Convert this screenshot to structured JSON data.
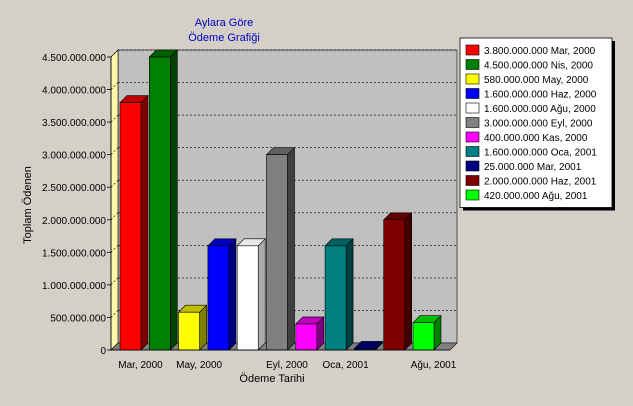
{
  "chart_data": {
    "type": "bar",
    "title": "Aylara Göre",
    "subtitle": "Ödeme Grafiği",
    "xlabel": "Ödeme Tarihi",
    "ylabel": "Toplam Ödenen",
    "ylim": [
      0,
      4500000000
    ],
    "yticks": [
      0,
      500000000,
      1000000000,
      1500000000,
      2000000000,
      2500000000,
      3000000000,
      3500000000,
      4000000000,
      4500000000
    ],
    "ytick_labels": [
      "0",
      "500.000.000",
      "1.000.000.000",
      "1.500.000.000",
      "2.000.000.000",
      "2.500.000.000",
      "3.000.000.000",
      "3.500.000.000",
      "4.000.000.000",
      "4.500.000.000"
    ],
    "xtick_labels": [
      "Mar, 2000",
      "May, 2000",
      "Eyl, 2000",
      "Oca, 2001",
      "Ağu, 2001"
    ],
    "grid": true,
    "legend_position": "right",
    "categories": [
      "Mar, 2000",
      "Nis, 2000",
      "May, 2000",
      "Haz, 2000",
      "Ağu, 2000",
      "Eyl, 2000",
      "Kas, 2000",
      "Oca, 2001",
      "Mar, 2001",
      "Haz, 2001",
      "Ağu, 2001"
    ],
    "series": [
      {
        "name": "3.800.000.000 Mar, 2000",
        "value": 3800000000,
        "color": "#ff0000"
      },
      {
        "name": "4.500.000.000 Nis, 2000",
        "value": 4500000000,
        "color": "#008000"
      },
      {
        "name": "580.000.000 May, 2000",
        "value": 580000000,
        "color": "#ffff00"
      },
      {
        "name": "1.600.000.000 Haz, 2000",
        "value": 1600000000,
        "color": "#0000ff"
      },
      {
        "name": "1.600.000.000 Ağu, 2000",
        "value": 1600000000,
        "color": "#ffffff"
      },
      {
        "name": "3.000.000.000 Eyl, 2000",
        "value": 3000000000,
        "color": "#808080"
      },
      {
        "name": "400.000.000 Kas, 2000",
        "value": 400000000,
        "color": "#ff00ff"
      },
      {
        "name": "1.600.000.000 Oca, 2001",
        "value": 1600000000,
        "color": "#008080"
      },
      {
        "name": "25.000.000 Mar, 2001",
        "value": 25000000,
        "color": "#000080"
      },
      {
        "name": "2.000.000.000 Haz, 2001",
        "value": 2000000000,
        "color": "#800000"
      },
      {
        "name": "420.000.000 Ağu, 2001",
        "value": 420000000,
        "color": "#00ff00"
      }
    ]
  }
}
